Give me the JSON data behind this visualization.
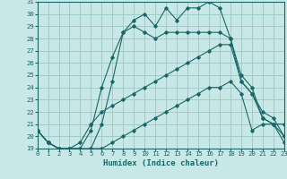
{
  "title": "Humidex (Indice chaleur)",
  "bg_color": "#c8e8e8",
  "grid_color": "#a0cccc",
  "line_color": "#1a6666",
  "xmin": 0,
  "xmax": 23,
  "ymin": 19,
  "ymax": 31,
  "lines": [
    [
      20.5,
      19.5,
      19.0,
      19.0,
      19.0,
      19.0,
      19.0,
      19.5,
      20.0,
      20.5,
      21.0,
      21.5,
      22.0,
      22.5,
      23.0,
      23.5,
      24.0,
      24.0,
      24.5,
      23.5,
      20.5,
      21.0,
      21.0,
      20.0
    ],
    [
      20.5,
      19.5,
      19.0,
      19.0,
      19.5,
      21.0,
      22.0,
      22.5,
      23.0,
      23.5,
      24.0,
      24.5,
      25.0,
      25.5,
      26.0,
      26.5,
      27.0,
      27.5,
      27.5,
      24.5,
      23.5,
      21.5,
      21.0,
      21.0
    ],
    [
      20.5,
      19.5,
      19.0,
      19.0,
      19.0,
      20.5,
      24.0,
      26.5,
      28.5,
      29.0,
      28.5,
      28.0,
      28.5,
      28.5,
      28.5,
      28.5,
      28.5,
      28.5,
      28.0,
      24.5,
      23.5,
      22.0,
      21.5,
      20.0
    ],
    [
      20.5,
      19.5,
      19.0,
      18.5,
      18.5,
      19.0,
      21.0,
      24.5,
      28.5,
      29.5,
      30.0,
      29.0,
      30.5,
      29.5,
      30.5,
      30.5,
      31.0,
      30.5,
      28.0,
      25.0,
      24.0,
      21.5,
      21.0,
      19.5
    ]
  ]
}
